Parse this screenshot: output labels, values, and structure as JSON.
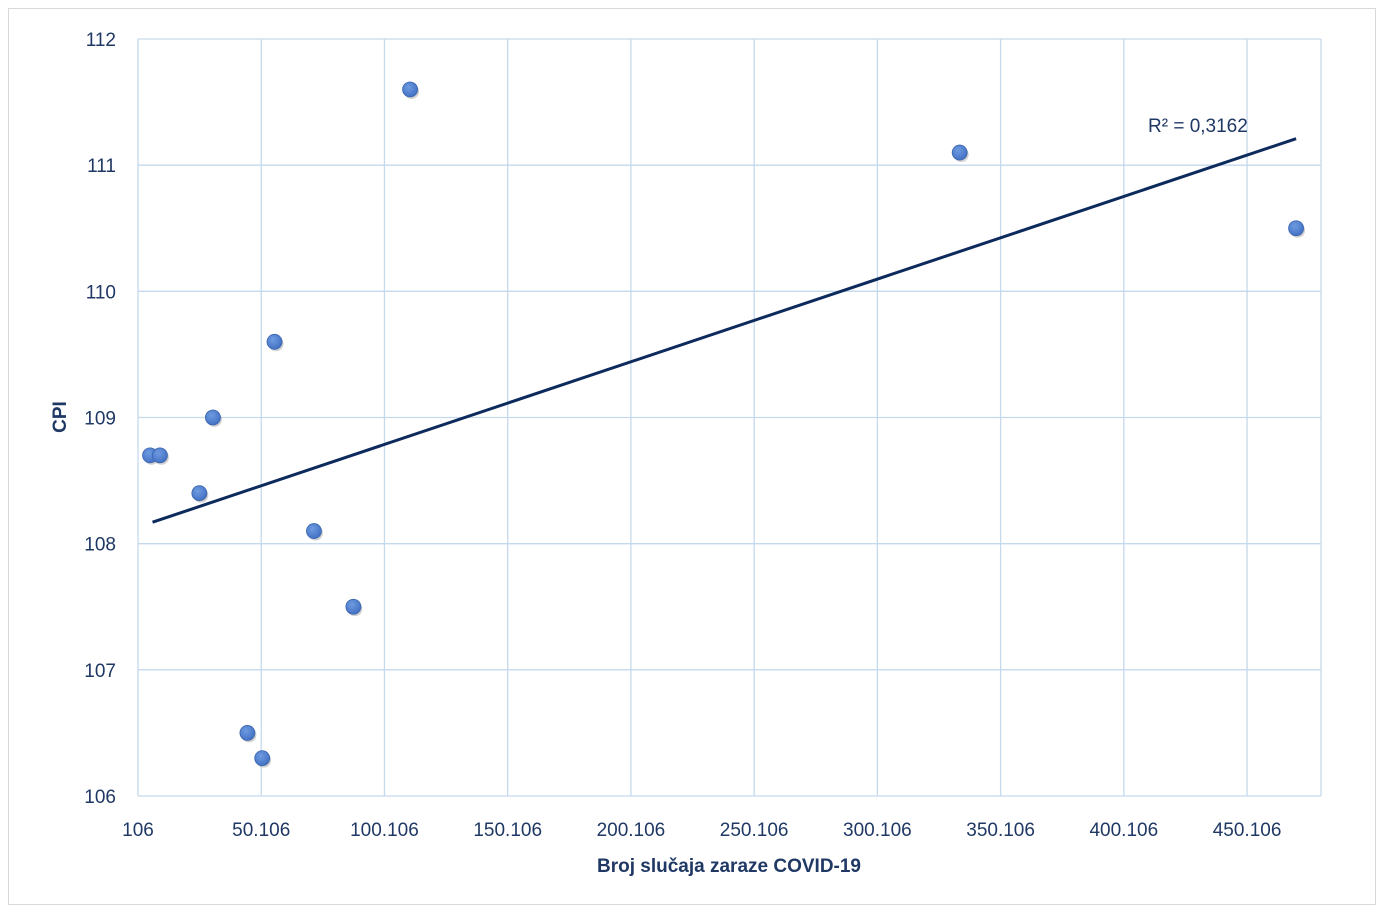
{
  "chart_data": {
    "type": "scatter",
    "title": "",
    "xlabel": "Broj slučaja zaraze COVID-19",
    "ylabel": "CPI",
    "xlim": [
      106,
      480106
    ],
    "ylim": [
      106,
      112
    ],
    "x_ticks": [
      106,
      50106,
      100106,
      150106,
      200106,
      250106,
      300106,
      350106,
      400106,
      450106
    ],
    "x_tick_labels": [
      "106",
      "50.106",
      "100.106",
      "150.106",
      "200.106",
      "250.106",
      "300.106",
      "350.106",
      "400.106",
      "450.106"
    ],
    "y_ticks": [
      106,
      107,
      108,
      109,
      110,
      111,
      112
    ],
    "y_tick_labels": [
      "106",
      "107",
      "108",
      "109",
      "110",
      "111",
      "112"
    ],
    "grid": true,
    "series": [
      {
        "marker_color": "#4472c4",
        "points": [
          {
            "x": 5000,
            "y": 108.7
          },
          {
            "x": 9000,
            "y": 108.7
          },
          {
            "x": 25000,
            "y": 108.4
          },
          {
            "x": 30500,
            "y": 109.0
          },
          {
            "x": 44500,
            "y": 106.5
          },
          {
            "x": 50500,
            "y": 106.3
          },
          {
            "x": 55500,
            "y": 109.6
          },
          {
            "x": 71500,
            "y": 108.1
          },
          {
            "x": 87500,
            "y": 107.5
          },
          {
            "x": 110500,
            "y": 111.6
          },
          {
            "x": 333500,
            "y": 111.1
          },
          {
            "x": 470000,
            "y": 110.5
          }
        ]
      }
    ],
    "trendline": {
      "type": "linear",
      "color": "#0d2a5c",
      "x_range": [
        6000,
        470000
      ],
      "y_start": 108.17,
      "y_end": 111.21,
      "r2_label": "R² = 0,3162"
    },
    "colors": {
      "grid": "#c5d9ec",
      "text": "#1f3864"
    }
  }
}
